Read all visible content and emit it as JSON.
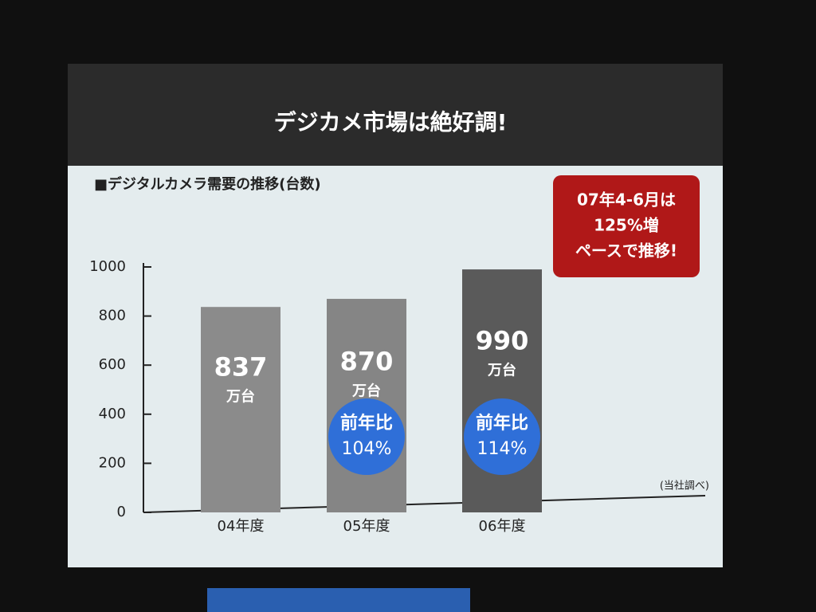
{
  "chart_data": {
    "type": "bar",
    "title": "デジカメ市場は絶好調!",
    "subtitle": "■デジタルカメラ需要の推移(台数)",
    "categories": [
      "04年度",
      "05年度",
      "06年度"
    ],
    "values": [
      837,
      870,
      990
    ],
    "colors": [
      "#8b8b8b",
      "#858585",
      "#5a5a5a"
    ],
    "unit_label": "万台",
    "ylim": [
      0,
      1000
    ],
    "yticks": [
      0,
      200,
      400,
      600,
      800,
      1000
    ],
    "growth_badges": [
      {
        "category": "05年度",
        "title": "前年比",
        "text": "104%"
      },
      {
        "category": "06年度",
        "title": "前年比",
        "text": "114%"
      }
    ],
    "callout": [
      "07年4-6月は",
      "125%増",
      "ペースで推移!"
    ],
    "source": "(当社調べ)"
  }
}
